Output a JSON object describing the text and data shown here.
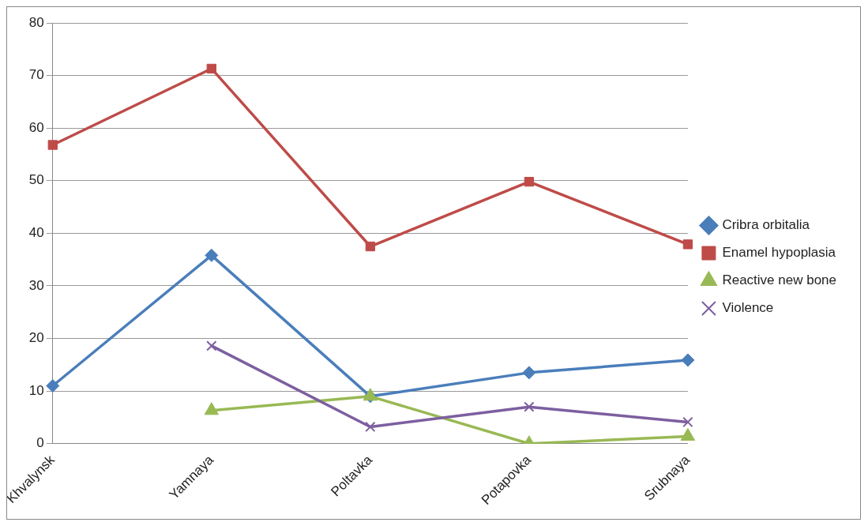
{
  "chart_data": {
    "type": "line",
    "categories": [
      "Khvalynsk",
      "Yamnaya",
      "Poltavka",
      "Potapovka",
      "Srubnaya"
    ],
    "series": [
      {
        "name": "Cribra orbitalia",
        "color": "#4a7ebb",
        "marker": "diamond",
        "values": [
          11,
          35.8,
          9,
          13.5,
          15.9
        ]
      },
      {
        "name": "Enamel hypoplasia",
        "color": "#be4b48",
        "marker": "square",
        "values": [
          56.8,
          71.3,
          37.5,
          49.8,
          37.9
        ]
      },
      {
        "name": "Reactive new bone",
        "color": "#98b954",
        "marker": "triangle",
        "values": [
          null,
          6.3,
          9,
          0,
          1.4
        ]
      },
      {
        "name": "Violence",
        "color": "#7d5fa0",
        "marker": "cross",
        "values": [
          null,
          18.6,
          3.2,
          7,
          4.1
        ]
      }
    ],
    "ylim": [
      0,
      80
    ],
    "yticks": [
      0,
      10,
      20,
      30,
      40,
      50,
      60,
      70,
      80
    ],
    "grid": "y",
    "legend": "right"
  }
}
